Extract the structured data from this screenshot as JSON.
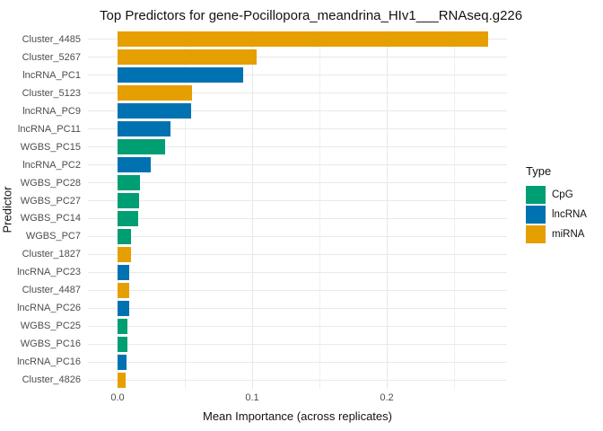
{
  "title": "Top Predictors for gene-Pocillopora_meandrina_HIv1___RNAseq.g226",
  "colors": {
    "CpG": "#009E73",
    "lncRNA": "#0072B2",
    "miRNA": "#E69F00"
  },
  "chart_data": {
    "type": "bar",
    "orientation": "horizontal",
    "title": "Top Predictors for gene-Pocillopora_meandrina_HIv1___RNAseq.g226",
    "xlabel": "Mean Importance (across replicates)",
    "ylabel": "Predictor",
    "xlim": [
      0,
      0.289
    ],
    "x_ticks": [
      0.0,
      0.1,
      0.2
    ],
    "x_tick_labels": [
      "0.0",
      "0.1",
      "0.2"
    ],
    "x_minor_gridlines": [
      0.05,
      0.15,
      0.25
    ],
    "grid": true,
    "legend": {
      "title": "Type",
      "position": "right",
      "entries": [
        {
          "label": "CpG",
          "color": "#009E73"
        },
        {
          "label": "lncRNA",
          "color": "#0072B2"
        },
        {
          "label": "miRNA",
          "color": "#E69F00"
        }
      ]
    },
    "bars": [
      {
        "label": "Cluster_4485",
        "type": "miRNA",
        "value": 0.2755
      },
      {
        "label": "Cluster_5267",
        "type": "miRNA",
        "value": 0.103
      },
      {
        "label": "lncRNA_PC1",
        "type": "lncRNA",
        "value": 0.0935
      },
      {
        "label": "Cluster_5123",
        "type": "miRNA",
        "value": 0.0555
      },
      {
        "label": "lncRNA_PC9",
        "type": "lncRNA",
        "value": 0.0545
      },
      {
        "label": "lncRNA_PC11",
        "type": "lncRNA",
        "value": 0.039
      },
      {
        "label": "WGBS_PC15",
        "type": "CpG",
        "value": 0.035
      },
      {
        "label": "lncRNA_PC2",
        "type": "lncRNA",
        "value": 0.0245
      },
      {
        "label": "WGBS_PC28",
        "type": "CpG",
        "value": 0.0167
      },
      {
        "label": "WGBS_PC27",
        "type": "CpG",
        "value": 0.016
      },
      {
        "label": "WGBS_PC14",
        "type": "CpG",
        "value": 0.0153
      },
      {
        "label": "WGBS_PC7",
        "type": "CpG",
        "value": 0.0102
      },
      {
        "label": "Cluster_1827",
        "type": "miRNA",
        "value": 0.0098
      },
      {
        "label": "lncRNA_PC23",
        "type": "lncRNA",
        "value": 0.0089
      },
      {
        "label": "Cluster_4487",
        "type": "miRNA",
        "value": 0.0087
      },
      {
        "label": "lncRNA_PC26",
        "type": "lncRNA",
        "value": 0.0085
      },
      {
        "label": "WGBS_PC25",
        "type": "CpG",
        "value": 0.0071
      },
      {
        "label": "WGBS_PC16",
        "type": "CpG",
        "value": 0.007
      },
      {
        "label": "lncRNA_PC16",
        "type": "lncRNA",
        "value": 0.0065
      },
      {
        "label": "Cluster_4826",
        "type": "miRNA",
        "value": 0.0057
      }
    ]
  }
}
